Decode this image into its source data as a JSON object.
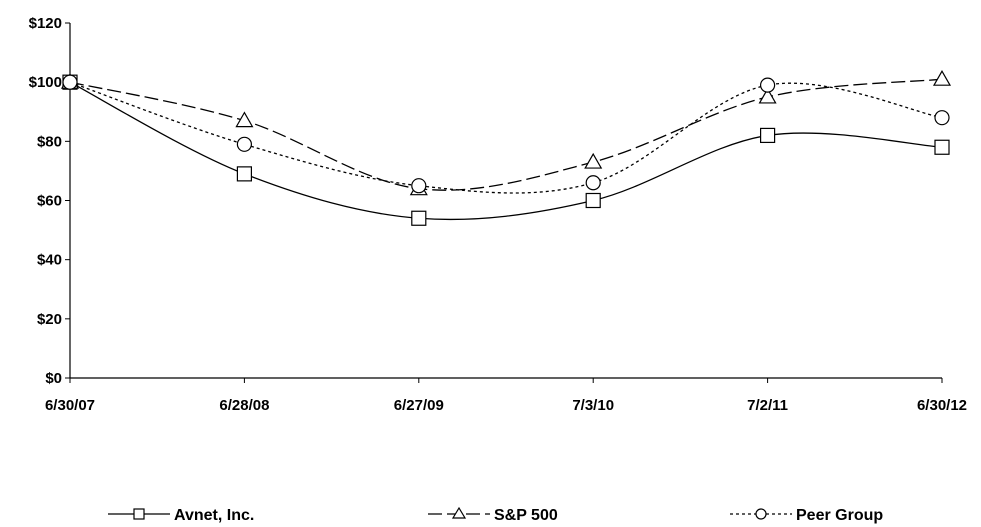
{
  "chart_data": {
    "type": "line",
    "categories": [
      "6/30/07",
      "6/28/08",
      "6/27/09",
      "7/3/10",
      "7/2/11",
      "6/30/12"
    ],
    "ylim": [
      0,
      120
    ],
    "yticks": [
      0,
      20,
      40,
      60,
      80,
      100,
      120
    ],
    "ytick_labels": [
      "$0",
      "$20",
      "$40",
      "$60",
      "$80",
      "$100",
      "$120"
    ],
    "grid": false,
    "legend_position": "bottom",
    "series": [
      {
        "name": "Avnet, Inc.",
        "values": [
          100,
          69,
          54,
          60,
          82,
          78
        ],
        "marker": "square",
        "dash": "solid",
        "color": "#000000"
      },
      {
        "name": "S&P 500",
        "values": [
          100,
          87,
          64,
          73,
          95,
          101
        ],
        "marker": "triangle",
        "dash": "long-dash",
        "color": "#000000"
      },
      {
        "name": "Peer Group",
        "values": [
          100,
          79,
          65,
          66,
          99,
          88
        ],
        "marker": "circle",
        "dash": "dotted",
        "color": "#000000"
      }
    ]
  }
}
